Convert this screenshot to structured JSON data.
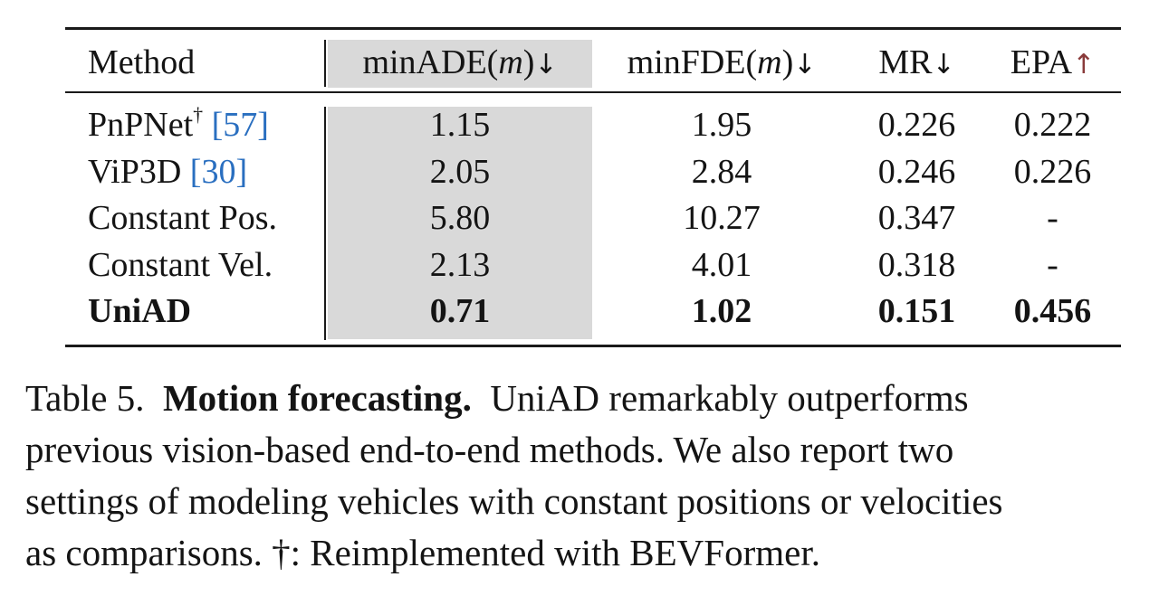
{
  "table": {
    "headers": {
      "method": "Method",
      "ade": "minADE(",
      "ade_unit": "m",
      "ade_close": ")",
      "ade_arrow": "↓",
      "fde": "minFDE(",
      "fde_unit": "m",
      "fde_close": ")",
      "fde_arrow": "↓",
      "mr": "MR",
      "mr_arrow": "↓",
      "epa": "EPA",
      "epa_arrow": "↑"
    },
    "rows": [
      {
        "method": "PnPNet",
        "dagger": "†",
        "cite": "[57]",
        "ade": "1.15",
        "fde": "1.95",
        "mr": "0.226",
        "epa": "0.222"
      },
      {
        "method": "ViP3D",
        "cite": "[30]",
        "ade": "2.05",
        "fde": "2.84",
        "mr": "0.246",
        "epa": "0.226"
      },
      {
        "method": "Constant Pos.",
        "ade": "5.80",
        "fde": "10.27",
        "mr": "0.347",
        "epa": "-"
      },
      {
        "method": "Constant Vel.",
        "ade": "2.13",
        "fde": "4.01",
        "mr": "0.318",
        "epa": "-"
      },
      {
        "method": "UniAD",
        "ade": "0.71",
        "fde": "1.02",
        "mr": "0.151",
        "epa": "0.456"
      }
    ]
  },
  "caption": {
    "label": "Table 5.",
    "title": "Motion forecasting.",
    "line1_rest": "UniAD remarkably outperforms",
    "line2": "previous vision-based end-to-end methods.  We also report two",
    "line3": "settings of modeling vehicles with constant positions or velocities",
    "line4": "as comparisons. †: Reimplemented with BEVFormer."
  }
}
